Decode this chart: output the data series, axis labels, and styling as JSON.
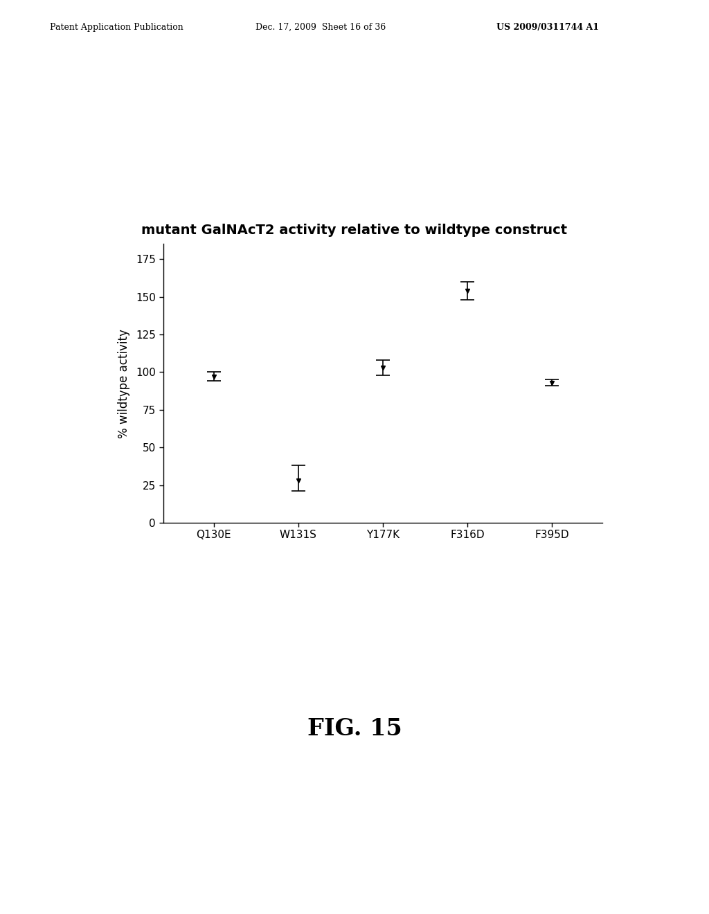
{
  "title": "mutant GalNAcT2 activity relative to wildtype construct",
  "ylabel": "% wildtype activity",
  "categories": [
    "Q130E",
    "W131S",
    "Y177K",
    "F316D",
    "F395D"
  ],
  "values": [
    97,
    28,
    103,
    154,
    93
  ],
  "errors_upper": [
    3,
    10,
    5,
    6,
    2
  ],
  "errors_lower": [
    3,
    7,
    5,
    6,
    2
  ],
  "ylim": [
    0,
    185
  ],
  "yticks": [
    0,
    25,
    50,
    75,
    100,
    125,
    150,
    175
  ],
  "marker_style": "v",
  "marker_size": 5,
  "marker_color": "black",
  "line_color": "black",
  "capsize": 7,
  "elinewidth": 1.2,
  "header_left": "Patent Application Publication",
  "header_center": "Dec. 17, 2009  Sheet 16 of 36",
  "header_right": "US 2009/0311744 A1",
  "fig_caption": "FIG. 15",
  "background_color": "white",
  "title_fontsize": 14,
  "title_fontweight": "bold",
  "axis_fontsize": 12,
  "tick_fontsize": 11,
  "header_fontsize": 9,
  "caption_fontsize": 24,
  "caption_fontweight": "bold"
}
